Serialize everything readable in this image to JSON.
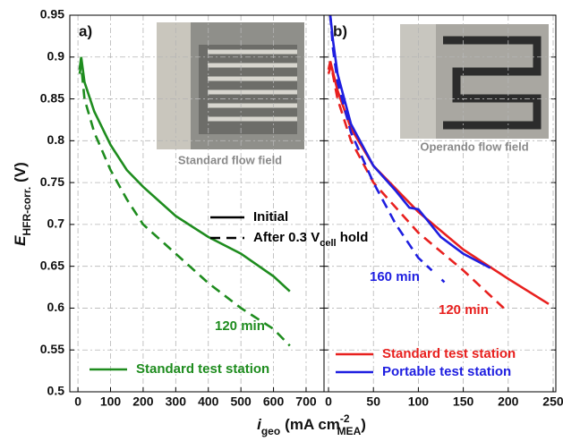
{
  "figure": {
    "ylabel": {
      "main": "E",
      "sub": "HFR-corr.",
      "unit": "(V)"
    },
    "xlabel": {
      "main": "i",
      "sub": "geo",
      "unit": "(mA cm",
      "sup": "-2",
      "sub2": "MEA",
      "end": ")"
    }
  },
  "chart_data": [
    {
      "type": "line",
      "panel_label": "a)",
      "photo_caption": "Standard flow field",
      "xlim": [
        -25,
        755
      ],
      "xticks": [
        0,
        100,
        200,
        300,
        400,
        500,
        600,
        700
      ],
      "ylim": [
        0.5,
        0.95
      ],
      "yticks": [
        0.5,
        0.55,
        0.6,
        0.65,
        0.7,
        0.75,
        0.8,
        0.85,
        0.9,
        0.95
      ],
      "grid": true,
      "stations": [
        {
          "name": "Standard test station",
          "color": "#1e8c1e"
        }
      ],
      "style_legend": [
        {
          "label": "Initial",
          "dash": false
        },
        {
          "label": "After 0.3 V",
          "sub": "cell",
          "end": " hold",
          "dash": true
        }
      ],
      "series": [
        {
          "station": 0,
          "style": 0,
          "x": [
            5,
            10,
            20,
            50,
            100,
            150,
            200,
            300,
            400,
            500,
            600,
            650
          ],
          "values": [
            0.885,
            0.9,
            0.87,
            0.835,
            0.795,
            0.765,
            0.745,
            0.71,
            0.685,
            0.665,
            0.638,
            0.62
          ]
        },
        {
          "station": 0,
          "style": 1,
          "x": [
            5,
            10,
            20,
            50,
            100,
            150,
            200,
            300,
            400,
            500,
            600,
            650
          ],
          "values": [
            0.88,
            0.89,
            0.85,
            0.81,
            0.765,
            0.73,
            0.7,
            0.665,
            0.63,
            0.6,
            0.575,
            0.555
          ]
        }
      ],
      "annotations": [
        {
          "text": "120 min",
          "color": "#1e8c1e"
        }
      ]
    },
    {
      "type": "line",
      "panel_label": "b)",
      "photo_caption": "Operando flow field",
      "xlim": [
        -5,
        253
      ],
      "xticks": [
        0,
        50,
        100,
        150,
        200,
        250
      ],
      "ylim": [
        0.5,
        0.95
      ],
      "yticks": [
        0.5,
        0.55,
        0.6,
        0.65,
        0.7,
        0.75,
        0.8,
        0.85,
        0.9,
        0.95
      ],
      "grid": true,
      "stations": [
        {
          "name": "Standard test station",
          "color": "#e8201e"
        },
        {
          "name": "Portable test station",
          "color": "#1e1ee0"
        }
      ],
      "series": [
        {
          "station": 0,
          "style": 0,
          "x": [
            0,
            2,
            10,
            25,
            50,
            100,
            150,
            200,
            245
          ],
          "values": [
            0.885,
            0.895,
            0.86,
            0.815,
            0.77,
            0.715,
            0.67,
            0.635,
            0.605
          ]
        },
        {
          "station": 0,
          "style": 1,
          "x": [
            0,
            3,
            10,
            25,
            50,
            100,
            150,
            195
          ],
          "values": [
            0.88,
            0.89,
            0.85,
            0.8,
            0.75,
            0.69,
            0.645,
            0.6
          ]
        },
        {
          "station": 1,
          "style": 0,
          "x": [
            2,
            5,
            10,
            25,
            50,
            75,
            90,
            100,
            110,
            125,
            150,
            180
          ],
          "values": [
            0.95,
            0.92,
            0.88,
            0.82,
            0.77,
            0.74,
            0.72,
            0.718,
            0.705,
            0.685,
            0.665,
            0.648
          ]
        },
        {
          "station": 1,
          "style": 1,
          "x": [
            2,
            5,
            10,
            25,
            50,
            75,
            100,
            115,
            121,
            126,
            129
          ],
          "values": [
            0.95,
            0.91,
            0.87,
            0.81,
            0.75,
            0.7,
            0.66,
            0.645,
            null,
            0.634,
            0.631
          ]
        }
      ],
      "annotations": [
        {
          "text": "160 min",
          "color": "#1e1ee0"
        },
        {
          "text": "120 min",
          "color": "#e8201e"
        }
      ]
    }
  ]
}
